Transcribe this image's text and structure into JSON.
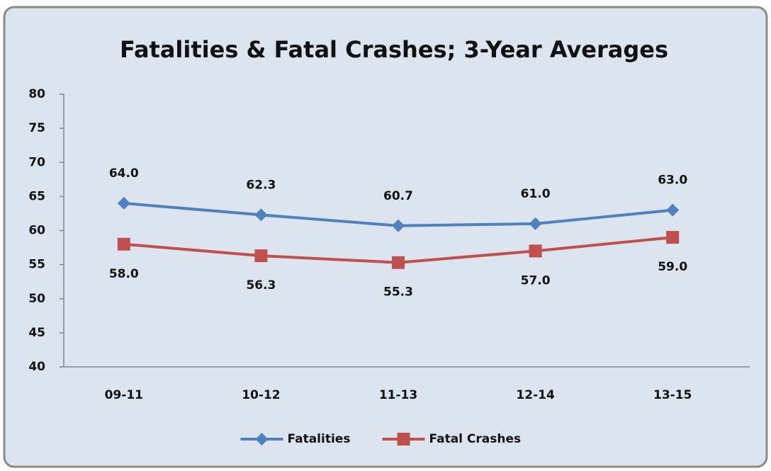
{
  "chart_data": {
    "type": "line",
    "title": "Fatalities & Fatal Crashes; 3-Year Averages",
    "categories": [
      "09-11",
      "10-12",
      "11-13",
      "12-14",
      "13-15"
    ],
    "series": [
      {
        "name": "Fatalities",
        "color": "#4f81bd",
        "marker": "diamond",
        "label_position": "above",
        "values": [
          64.0,
          62.3,
          60.7,
          61.0,
          63.0
        ],
        "value_labels": [
          "64.0",
          "62.3",
          "60.7",
          "61.0",
          "63.0"
        ]
      },
      {
        "name": "Fatal Crashes",
        "color": "#c0504d",
        "marker": "square",
        "label_position": "below",
        "values": [
          58.0,
          56.3,
          55.3,
          57.0,
          59.0
        ],
        "value_labels": [
          "58.0",
          "56.3",
          "55.3",
          "57.0",
          "59.0"
        ]
      }
    ],
    "ylim": [
      40,
      80
    ],
    "yticks": [
      40,
      45,
      50,
      55,
      60,
      65,
      70,
      75,
      80
    ],
    "grid": false,
    "legend": "bottom"
  }
}
